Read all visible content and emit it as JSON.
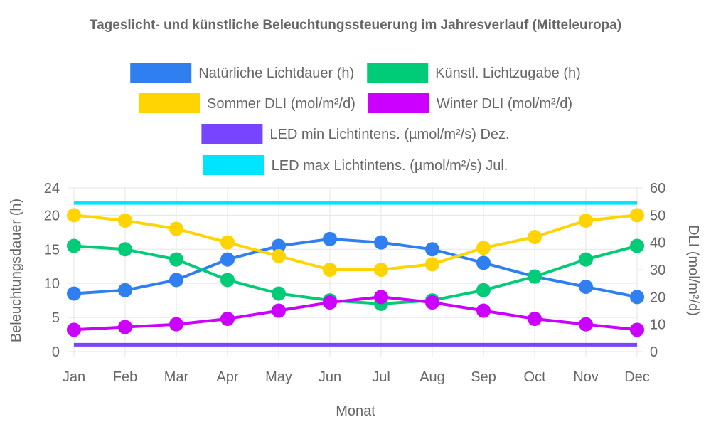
{
  "chart_data": {
    "type": "line",
    "title": "Tageslicht- und künstliche Beleuchtungssteuerung im Jahresverlauf (Mitteleuropa)",
    "categories": [
      "Jan",
      "Feb",
      "Mar",
      "Apr",
      "May",
      "Jun",
      "Jul",
      "Aug",
      "Sep",
      "Oct",
      "Nov",
      "Dec"
    ],
    "xlabel": "Monat",
    "y_left": {
      "label": "Beleuchtungsdauer (h)",
      "ylim": [
        0,
        24
      ],
      "ticks": [
        "0",
        "5",
        "10",
        "15",
        "20",
        "24"
      ],
      "tick_values": [
        0,
        5,
        10,
        15,
        20,
        24
      ]
    },
    "y_right": {
      "label": "DLI (mol/m²/d)",
      "ylim": [
        0,
        60
      ],
      "ticks": [
        "0",
        "10",
        "20",
        "30",
        "40",
        "50",
        "60"
      ],
      "tick_values": [
        0,
        10,
        20,
        30,
        40,
        50,
        60
      ]
    },
    "legend_position": "top",
    "grid": true,
    "series": [
      {
        "name": "Natürliche Lichtdauer (h)",
        "axis": "left",
        "color": "#2f7ff0",
        "markers": true,
        "values": [
          8.5,
          9,
          10.5,
          13.5,
          15.5,
          16.5,
          16,
          15,
          13,
          11,
          9.5,
          8
        ]
      },
      {
        "name": "Künstl. Lichtzugabe (h)",
        "axis": "left",
        "color": "#00cc77",
        "markers": true,
        "values": [
          15.5,
          15,
          13.5,
          10.5,
          8.5,
          7.5,
          7,
          7.5,
          9,
          11,
          13.5,
          15.5
        ]
      },
      {
        "name": "Sommer DLI (mol/m²/d)",
        "axis": "right",
        "color": "#ffd400",
        "markers": true,
        "values": [
          50,
          48,
          45,
          40,
          35,
          30,
          30,
          32,
          38,
          42,
          48,
          50
        ]
      },
      {
        "name": "Winter DLI (mol/m²/d)",
        "axis": "right",
        "color": "#cc00ff",
        "markers": true,
        "values": [
          8,
          9,
          10,
          12,
          15,
          18,
          20,
          18,
          15,
          12,
          10,
          8
        ]
      },
      {
        "name": "LED min Lichtintens. (µmol/m²/s) Dez.",
        "axis": "right",
        "color": "#7744ff",
        "markers": false,
        "values": [
          2.5,
          2.5,
          2.5,
          2.5,
          2.5,
          2.5,
          2.5,
          2.5,
          2.5,
          2.5,
          2.5,
          2.5
        ]
      },
      {
        "name": "LED max Lichtintens. (µmol/m²/s) Jul.",
        "axis": "right",
        "color": "#00e5ff",
        "markers": false,
        "values": [
          54.5,
          54.5,
          54.5,
          54.5,
          54.5,
          54.5,
          54.5,
          54.5,
          54.5,
          54.5,
          54.5,
          54.5
        ]
      }
    ]
  }
}
